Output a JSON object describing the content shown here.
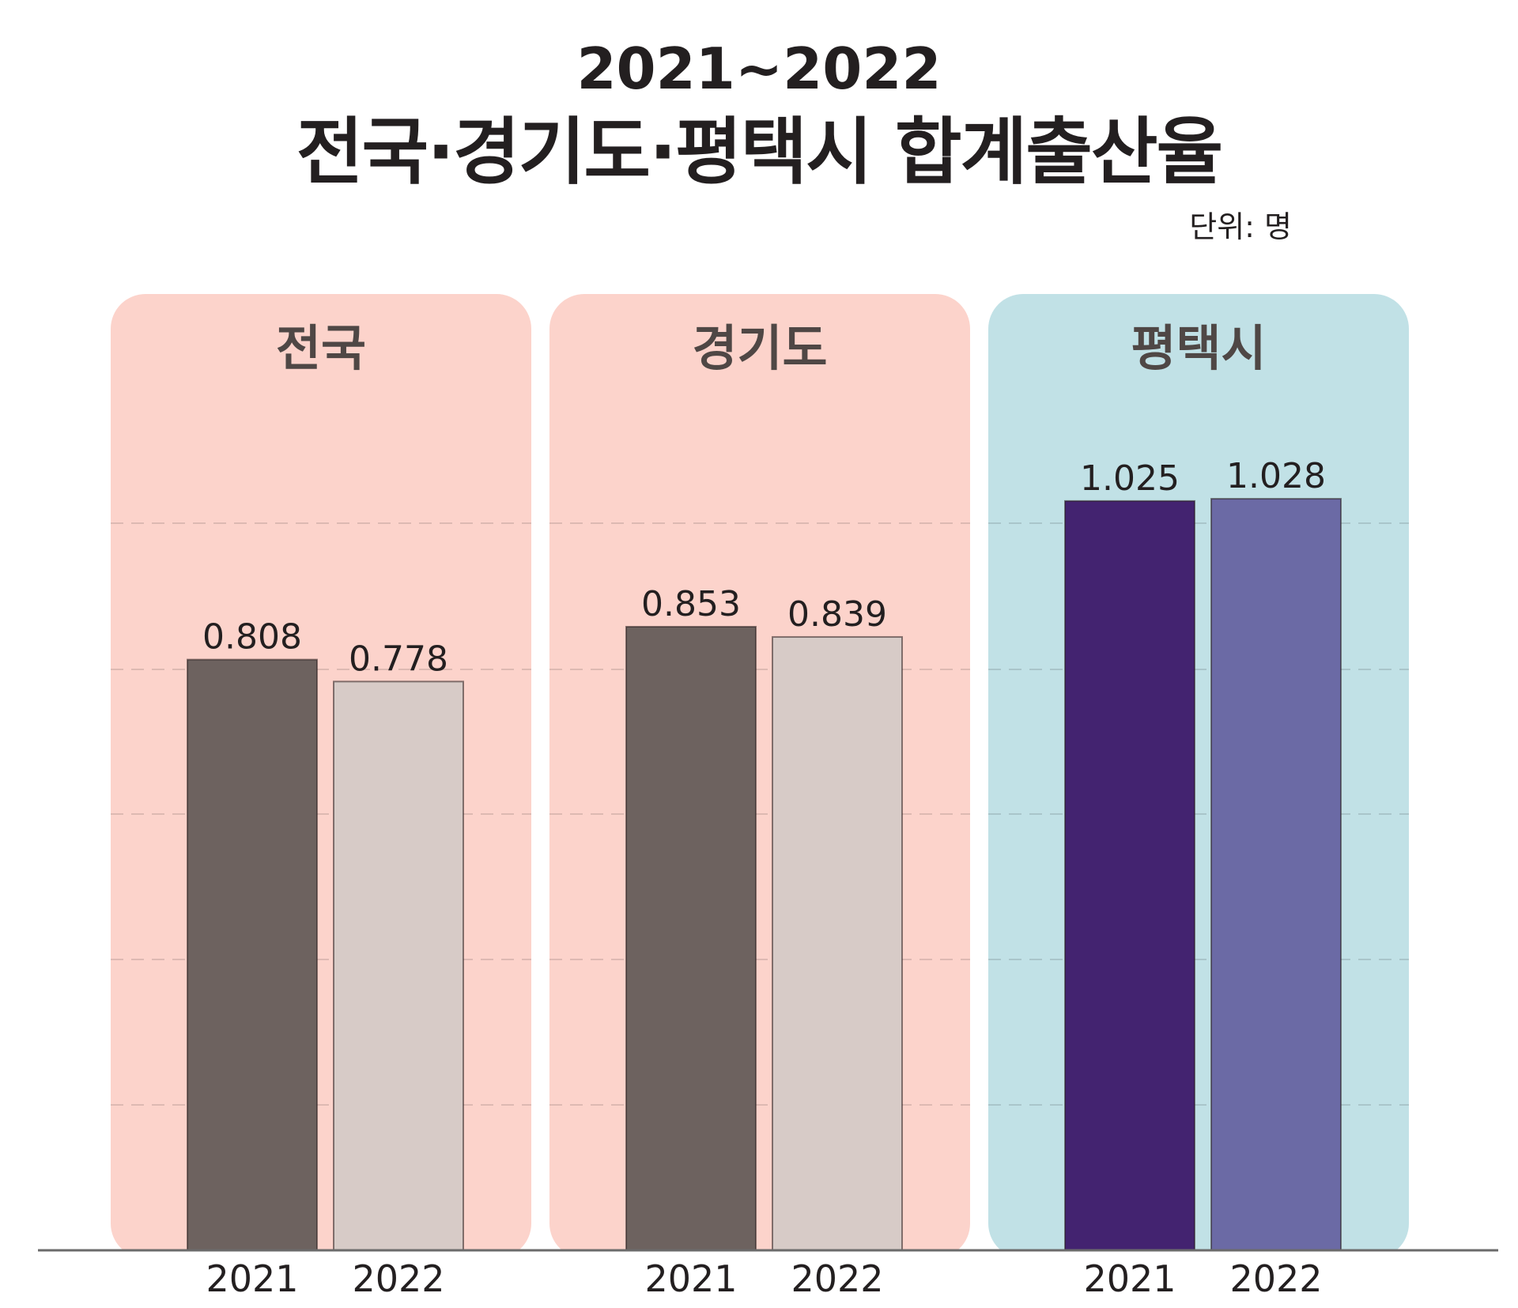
{
  "title_line1": "2021~2022",
  "title_line2": "전국·경기도·평택시 합계출산율",
  "unit": "단위: 명",
  "colors": {
    "panel_pink": "#fcd3cb",
    "panel_blue": "#c1e1e6",
    "grey_dark": "#6d625f",
    "grey_light": "#d7cbc7",
    "purple_dark": "#432370",
    "purple_light": "#6b6aa5",
    "axis": "#6b6b6b",
    "text": "#231f20"
  },
  "chart_data": {
    "type": "bar",
    "ylim": [
      0,
      1.2
    ],
    "grid": true,
    "groups": [
      {
        "name": "전국",
        "panel_color": "#fcd3cb",
        "bars": [
          {
            "label": "2021",
            "value": 0.808,
            "value_label": "0.808",
            "color": "#6d625f"
          },
          {
            "label": "2022",
            "value": 0.778,
            "value_label": "0.778",
            "color": "#d7cbc7"
          }
        ]
      },
      {
        "name": "경기도",
        "panel_color": "#fcd3cb",
        "bars": [
          {
            "label": "2021",
            "value": 0.853,
            "value_label": "0.853",
            "color": "#6d625f"
          },
          {
            "label": "2022",
            "value": 0.839,
            "value_label": "0.839",
            "color": "#d7cbc7"
          }
        ]
      },
      {
        "name": "평택시",
        "panel_color": "#c1e1e6",
        "bars": [
          {
            "label": "2021",
            "value": 1.025,
            "value_label": "1.025",
            "color": "#432370"
          },
          {
            "label": "2022",
            "value": 1.028,
            "value_label": "1.028",
            "color": "#6b6aa5"
          }
        ]
      }
    ]
  }
}
